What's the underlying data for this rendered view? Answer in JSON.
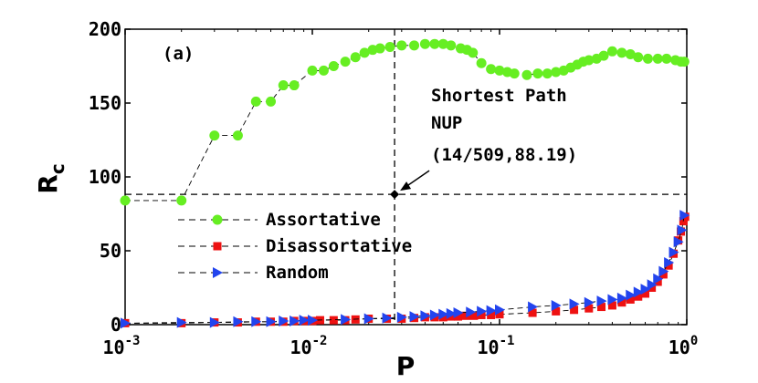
{
  "chart_data": {
    "type": "scatter",
    "panel_label": "(a)",
    "xlabel": "P",
    "ylabel": "R",
    "ylabel_subscript": "c",
    "xscale": "log",
    "xlim": [
      0.001,
      1
    ],
    "ylim": [
      0,
      200
    ],
    "x_ticks": [
      {
        "value": 0.001,
        "base": "10",
        "exp": "-3"
      },
      {
        "value": 0.01,
        "base": "10",
        "exp": "-2"
      },
      {
        "value": 0.1,
        "base": "10",
        "exp": "-1"
      },
      {
        "value": 1,
        "base": "10",
        "exp": "0"
      }
    ],
    "y_ticks": [
      0,
      50,
      100,
      150,
      200
    ],
    "reference_lines": {
      "x": 0.0275,
      "y": 88.19
    },
    "highlight_point": {
      "x": 0.0275,
      "y": 88.19,
      "label": "(14/509,88.19)"
    },
    "annotations": [
      "Shortest Path",
      "NUP"
    ],
    "legend_position": "center-left",
    "series": [
      {
        "name": "Assortative",
        "color": "#66ee22",
        "marker": "circle",
        "points": [
          [
            0.001,
            84
          ],
          [
            0.002,
            84
          ],
          [
            0.003,
            128
          ],
          [
            0.004,
            128
          ],
          [
            0.005,
            151
          ],
          [
            0.006,
            151
          ],
          [
            0.007,
            162
          ],
          [
            0.008,
            162
          ],
          [
            0.01,
            172
          ],
          [
            0.0115,
            172
          ],
          [
            0.013,
            175
          ],
          [
            0.015,
            178
          ],
          [
            0.017,
            181
          ],
          [
            0.019,
            184
          ],
          [
            0.021,
            186
          ],
          [
            0.023,
            187
          ],
          [
            0.026,
            188
          ],
          [
            0.03,
            189
          ],
          [
            0.035,
            189
          ],
          [
            0.04,
            190
          ],
          [
            0.045,
            190
          ],
          [
            0.05,
            190
          ],
          [
            0.055,
            189
          ],
          [
            0.062,
            187
          ],
          [
            0.067,
            186
          ],
          [
            0.072,
            184
          ],
          [
            0.08,
            177
          ],
          [
            0.09,
            173
          ],
          [
            0.1,
            172
          ],
          [
            0.11,
            171
          ],
          [
            0.12,
            170
          ],
          [
            0.14,
            169
          ],
          [
            0.16,
            170
          ],
          [
            0.18,
            170
          ],
          [
            0.2,
            171
          ],
          [
            0.22,
            172
          ],
          [
            0.24,
            174
          ],
          [
            0.26,
            176
          ],
          [
            0.28,
            178
          ],
          [
            0.3,
            179
          ],
          [
            0.33,
            180
          ],
          [
            0.36,
            182
          ],
          [
            0.4,
            185
          ],
          [
            0.45,
            184
          ],
          [
            0.5,
            183
          ],
          [
            0.55,
            181
          ],
          [
            0.62,
            180
          ],
          [
            0.7,
            180
          ],
          [
            0.78,
            180
          ],
          [
            0.87,
            179
          ],
          [
            0.93,
            178
          ],
          [
            0.97,
            178
          ]
        ]
      },
      {
        "name": "Disassortative",
        "color": "#ee1111",
        "marker": "square",
        "points": [
          [
            0.001,
            1
          ],
          [
            0.002,
            1
          ],
          [
            0.003,
            1.5
          ],
          [
            0.004,
            1.5
          ],
          [
            0.005,
            2
          ],
          [
            0.006,
            2
          ],
          [
            0.007,
            2
          ],
          [
            0.008,
            2.5
          ],
          [
            0.009,
            2.5
          ],
          [
            0.01,
            2.5
          ],
          [
            0.011,
            3
          ],
          [
            0.013,
            3
          ],
          [
            0.015,
            3
          ],
          [
            0.017,
            3.5
          ],
          [
            0.02,
            4
          ],
          [
            0.025,
            4
          ],
          [
            0.03,
            4
          ],
          [
            0.035,
            4.5
          ],
          [
            0.04,
            5
          ],
          [
            0.045,
            5
          ],
          [
            0.05,
            5
          ],
          [
            0.055,
            5.5
          ],
          [
            0.06,
            5.5
          ],
          [
            0.066,
            6
          ],
          [
            0.073,
            6
          ],
          [
            0.08,
            6.5
          ],
          [
            0.09,
            6.5
          ],
          [
            0.1,
            7
          ],
          [
            0.15,
            8
          ],
          [
            0.2,
            9
          ],
          [
            0.25,
            10
          ],
          [
            0.3,
            11
          ],
          [
            0.35,
            12
          ],
          [
            0.4,
            13
          ],
          [
            0.45,
            15
          ],
          [
            0.5,
            17
          ],
          [
            0.55,
            19
          ],
          [
            0.6,
            21
          ],
          [
            0.65,
            25
          ],
          [
            0.7,
            29
          ],
          [
            0.75,
            34
          ],
          [
            0.8,
            40
          ],
          [
            0.85,
            48
          ],
          [
            0.9,
            57
          ],
          [
            0.93,
            63
          ],
          [
            0.96,
            70
          ],
          [
            0.98,
            73
          ]
        ]
      },
      {
        "name": "Random",
        "color": "#2244ee",
        "marker": "triangle-right",
        "points": [
          [
            0.001,
            1
          ],
          [
            0.002,
            1.5
          ],
          [
            0.003,
            1.5
          ],
          [
            0.004,
            2
          ],
          [
            0.005,
            2
          ],
          [
            0.006,
            2
          ],
          [
            0.007,
            2.5
          ],
          [
            0.008,
            2.5
          ],
          [
            0.009,
            3
          ],
          [
            0.01,
            3
          ],
          [
            0.015,
            3.5
          ],
          [
            0.02,
            4
          ],
          [
            0.025,
            4.5
          ],
          [
            0.03,
            5
          ],
          [
            0.035,
            5.5
          ],
          [
            0.04,
            6
          ],
          [
            0.045,
            6.5
          ],
          [
            0.05,
            7
          ],
          [
            0.055,
            7.5
          ],
          [
            0.06,
            8
          ],
          [
            0.07,
            8.5
          ],
          [
            0.08,
            9
          ],
          [
            0.09,
            9.5
          ],
          [
            0.1,
            10
          ],
          [
            0.15,
            12
          ],
          [
            0.2,
            13
          ],
          [
            0.25,
            14
          ],
          [
            0.3,
            15
          ],
          [
            0.35,
            16
          ],
          [
            0.4,
            17
          ],
          [
            0.45,
            18
          ],
          [
            0.5,
            20
          ],
          [
            0.55,
            22
          ],
          [
            0.6,
            24
          ],
          [
            0.65,
            27
          ],
          [
            0.7,
            31
          ],
          [
            0.75,
            36
          ],
          [
            0.8,
            42
          ],
          [
            0.85,
            49
          ],
          [
            0.9,
            56
          ],
          [
            0.94,
            64
          ],
          [
            0.97,
            74
          ]
        ]
      }
    ]
  }
}
